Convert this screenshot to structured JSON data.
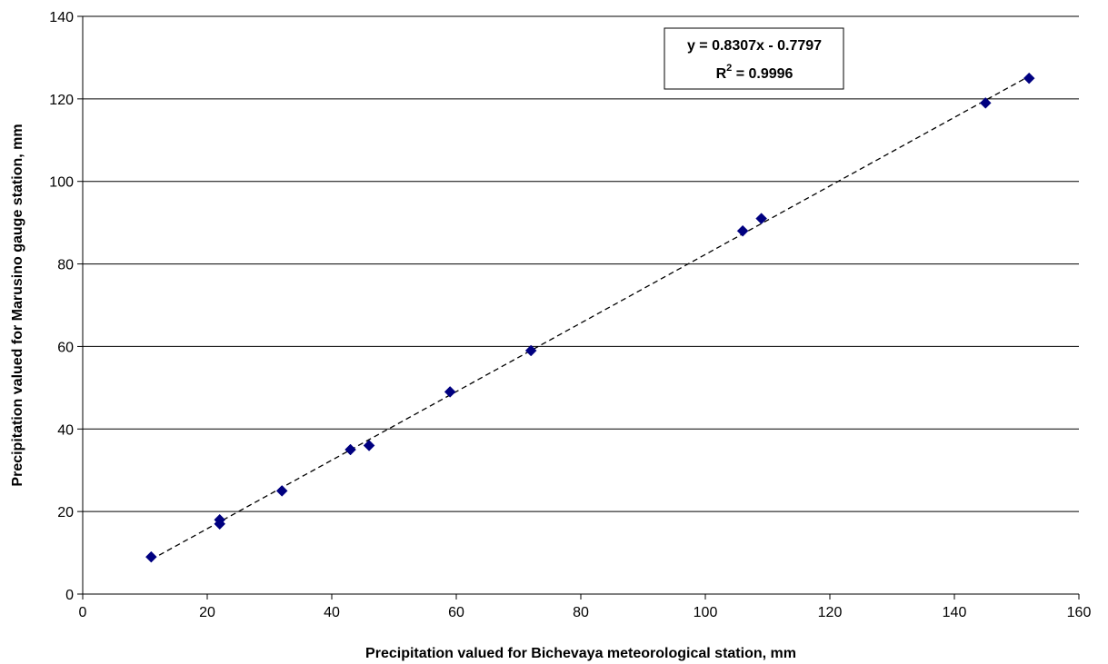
{
  "chart_data": {
    "type": "scatter",
    "title": "",
    "xlabel": "Precipitation valued for Bichevaya meteorological station, mm",
    "ylabel": "Precipitation valued for Marusino gauge station, mm",
    "xlim": [
      0,
      160
    ],
    "ylim": [
      0,
      140
    ],
    "xticks": [
      0,
      20,
      40,
      60,
      80,
      100,
      120,
      140,
      160
    ],
    "yticks": [
      0,
      20,
      40,
      60,
      80,
      100,
      120,
      140
    ],
    "grid": "horizontal",
    "marker_color": "#000080",
    "points": [
      {
        "x": 11,
        "y": 9
      },
      {
        "x": 22,
        "y": 17
      },
      {
        "x": 22,
        "y": 18
      },
      {
        "x": 32,
        "y": 25
      },
      {
        "x": 43,
        "y": 35
      },
      {
        "x": 46,
        "y": 36
      },
      {
        "x": 59,
        "y": 49
      },
      {
        "x": 72,
        "y": 59
      },
      {
        "x": 106,
        "y": 88
      },
      {
        "x": 109,
        "y": 91
      },
      {
        "x": 145,
        "y": 119
      },
      {
        "x": 152,
        "y": 125
      }
    ],
    "trendline": {
      "type": "linear",
      "slope": 0.8307,
      "intercept": -0.7797,
      "x_range": [
        11,
        152
      ],
      "style": "dashed"
    },
    "annotation": {
      "equation": "y = 0.8307x - 0.7797",
      "r2_prefix": "R",
      "r2_sup": "2",
      "r2_value": " = 0.9996"
    }
  }
}
